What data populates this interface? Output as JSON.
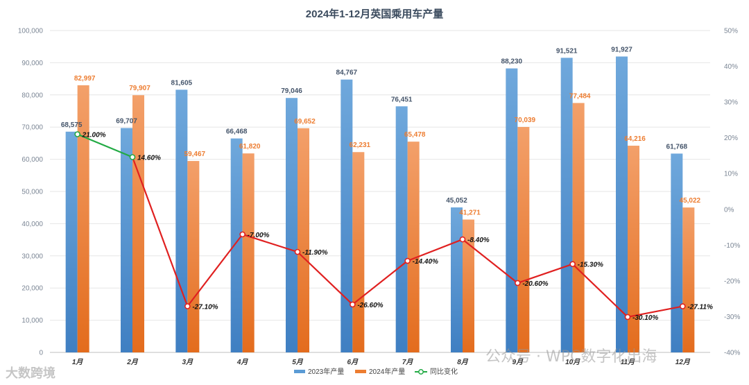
{
  "chart_data": {
    "type": "bar",
    "title": "2024年1-12月英国乘用车产量",
    "categories": [
      "1月",
      "2月",
      "3月",
      "4月",
      "5月",
      "6月",
      "7月",
      "8月",
      "9月",
      "10月",
      "11月",
      "12月"
    ],
    "series": [
      {
        "name": "2023年产量",
        "axis": "left",
        "color": "#5b9bd5",
        "values": [
          68575,
          69707,
          81605,
          66468,
          79046,
          84767,
          76451,
          45052,
          88230,
          91521,
          91927,
          61768
        ],
        "labels": [
          "68,575",
          "69,707",
          "81,605",
          "66,468",
          "79,046",
          "84,767",
          "76,451",
          "45,052",
          "88,230",
          "91,521",
          "91,927",
          "61,768"
        ]
      },
      {
        "name": "2024年产量",
        "axis": "left",
        "color": "#ed7d31",
        "values": [
          82997,
          79907,
          59467,
          61820,
          69652,
          62231,
          65478,
          41271,
          70039,
          77484,
          64216,
          45022
        ],
        "labels": [
          "82,997",
          "79,907",
          "59,467",
          "61,820",
          "69,652",
          "62,231",
          "65,478",
          "41,271",
          "70,039",
          "77,484",
          "64,216",
          "45,022"
        ]
      },
      {
        "name": "同比变化",
        "axis": "right",
        "type": "line",
        "color": "#e02020",
        "positive_color": "#22aa44",
        "values": [
          21.0,
          14.6,
          -27.1,
          -7.0,
          -11.9,
          -26.6,
          -14.4,
          -8.4,
          -20.6,
          -15.3,
          -30.1,
          -27.11
        ],
        "labels": [
          "21.00%",
          "14.60%",
          "-27.10%",
          "-7.00%",
          "-11.90%",
          "-26.60%",
          "-14.40%",
          "-8.40%",
          "-20.60%",
          "-15.30%",
          "-30.10%",
          "-27.11%"
        ]
      }
    ],
    "ylim": [
      0,
      100000
    ],
    "y_ticks": [
      "0",
      "10,000",
      "20,000",
      "30,000",
      "40,000",
      "50,000",
      "60,000",
      "70,000",
      "80,000",
      "90,000",
      "100,000"
    ],
    "y2lim": [
      -40,
      50
    ],
    "y2_ticks": [
      "-40%",
      "-30%",
      "-20%",
      "-10%",
      "0%",
      "10%",
      "20%",
      "30%",
      "40%",
      "50%"
    ],
    "legend_position": "bottom"
  },
  "watermarks": {
    "wechat": "公众号 · WPC数字化出海",
    "corner": "大数跨境"
  }
}
